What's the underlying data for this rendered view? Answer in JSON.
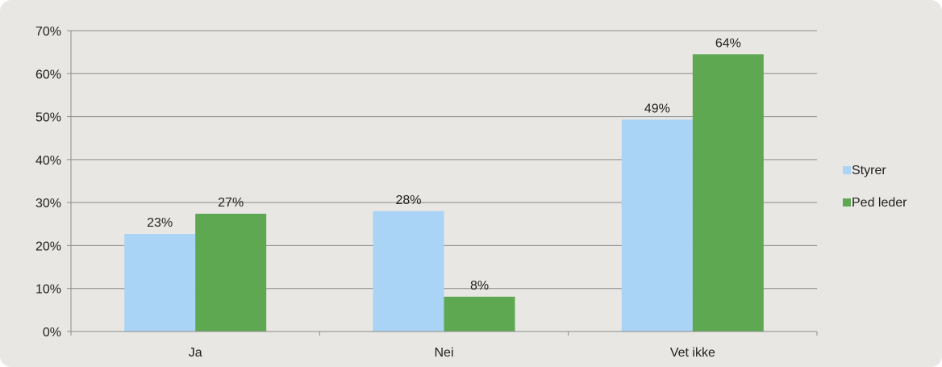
{
  "chart_data": {
    "type": "bar",
    "title": "",
    "xlabel": "",
    "ylabel": "",
    "categories": [
      "Ja",
      "Nei",
      "Vet ikke"
    ],
    "series": [
      {
        "name": "Styrer",
        "values": [
          0.227,
          0.28,
          0.493
        ],
        "labels": [
          "23%",
          "28%",
          "49%"
        ],
        "color": "#a9d4f5"
      },
      {
        "name": "Ped leder",
        "values": [
          0.274,
          0.081,
          0.645
        ],
        "labels": [
          "27%",
          "8%",
          "64%"
        ],
        "color": "#5fa852"
      }
    ],
    "ylim": [
      0,
      0.7
    ],
    "yticks": [
      0,
      0.1,
      0.2,
      0.3,
      0.4,
      0.5,
      0.6,
      0.7
    ],
    "ytick_labels": [
      "0%",
      "10%",
      "20%",
      "30%",
      "40%",
      "50%",
      "60%",
      "70%"
    ],
    "grid": true,
    "legend_position": "right"
  },
  "style": {
    "background": "#e8e7e3",
    "gridline_color": "#8c8c8c",
    "axis_color": "#8c8c8c"
  }
}
